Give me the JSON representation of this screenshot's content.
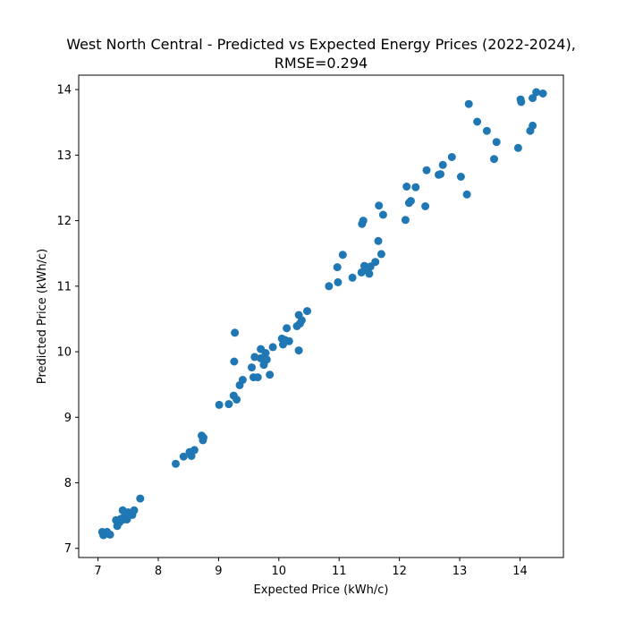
{
  "chart_data": {
    "type": "scatter",
    "title_line1": "West North Central - Predicted vs Expected Energy Prices (2022-2024),",
    "title_line2": "RMSE=0.294",
    "xlabel": "Expected Price (kWh/c)",
    "ylabel": "Predicted Price (kWh/c)",
    "xlim": [
      6.68,
      14.72
    ],
    "ylim": [
      6.86,
      14.22
    ],
    "xticks": [
      7,
      8,
      9,
      10,
      11,
      12,
      13,
      14
    ],
    "yticks": [
      7,
      8,
      9,
      10,
      11,
      12,
      13,
      14
    ],
    "grid": false,
    "marker_color": "#1f77b4",
    "points": [
      [
        7.07,
        7.25
      ],
      [
        7.09,
        7.2
      ],
      [
        7.12,
        7.22
      ],
      [
        7.15,
        7.25
      ],
      [
        7.2,
        7.21
      ],
      [
        7.3,
        7.43
      ],
      [
        7.32,
        7.34
      ],
      [
        7.36,
        7.4
      ],
      [
        7.38,
        7.45
      ],
      [
        7.41,
        7.58
      ],
      [
        7.43,
        7.44
      ],
      [
        7.45,
        7.5
      ],
      [
        7.48,
        7.44
      ],
      [
        7.5,
        7.55
      ],
      [
        7.55,
        7.53
      ],
      [
        7.57,
        7.51
      ],
      [
        7.6,
        7.58
      ],
      [
        7.7,
        7.76
      ],
      [
        8.29,
        8.29
      ],
      [
        8.42,
        8.4
      ],
      [
        8.52,
        8.47
      ],
      [
        8.55,
        8.41
      ],
      [
        8.6,
        8.5
      ],
      [
        8.72,
        8.72
      ],
      [
        8.74,
        8.65
      ],
      [
        8.75,
        8.69
      ],
      [
        9.01,
        9.19
      ],
      [
        9.17,
        9.2
      ],
      [
        9.25,
        9.33
      ],
      [
        9.3,
        9.27
      ],
      [
        9.35,
        9.49
      ],
      [
        9.4,
        9.57
      ],
      [
        9.26,
        9.85
      ],
      [
        9.27,
        10.29
      ],
      [
        9.55,
        9.76
      ],
      [
        9.58,
        9.61
      ],
      [
        9.6,
        9.92
      ],
      [
        9.65,
        9.61
      ],
      [
        9.7,
        10.04
      ],
      [
        9.7,
        9.9
      ],
      [
        9.75,
        9.8
      ],
      [
        9.78,
        9.98
      ],
      [
        9.8,
        9.88
      ],
      [
        9.85,
        9.65
      ],
      [
        9.9,
        10.07
      ],
      [
        10.05,
        10.2
      ],
      [
        10.07,
        10.11
      ],
      [
        10.1,
        10.18
      ],
      [
        10.13,
        10.36
      ],
      [
        10.17,
        10.16
      ],
      [
        10.3,
        10.39
      ],
      [
        10.33,
        10.56
      ],
      [
        10.35,
        10.43
      ],
      [
        10.38,
        10.48
      ],
      [
        10.33,
        10.02
      ],
      [
        10.47,
        10.62
      ],
      [
        10.83,
        11.0
      ],
      [
        10.98,
        11.06
      ],
      [
        10.97,
        11.29
      ],
      [
        11.06,
        11.48
      ],
      [
        11.22,
        11.13
      ],
      [
        11.37,
        11.21
      ],
      [
        11.38,
        11.95
      ],
      [
        11.4,
        12.0
      ],
      [
        11.42,
        11.31
      ],
      [
        11.45,
        11.25
      ],
      [
        11.5,
        11.19
      ],
      [
        11.52,
        11.3
      ],
      [
        11.6,
        11.37
      ],
      [
        11.65,
        11.69
      ],
      [
        11.66,
        12.23
      ],
      [
        11.7,
        11.49
      ],
      [
        11.73,
        12.09
      ],
      [
        12.1,
        12.01
      ],
      [
        12.12,
        12.52
      ],
      [
        12.16,
        12.27
      ],
      [
        12.19,
        12.3
      ],
      [
        12.27,
        12.51
      ],
      [
        12.43,
        12.22
      ],
      [
        12.45,
        12.77
      ],
      [
        12.65,
        12.7
      ],
      [
        12.68,
        12.71
      ],
      [
        12.72,
        12.85
      ],
      [
        12.87,
        12.97
      ],
      [
        13.02,
        12.67
      ],
      [
        13.12,
        12.4
      ],
      [
        13.15,
        13.78
      ],
      [
        13.29,
        13.51
      ],
      [
        13.45,
        13.37
      ],
      [
        13.57,
        12.94
      ],
      [
        13.61,
        13.2
      ],
      [
        13.97,
        13.11
      ],
      [
        14.01,
        13.85
      ],
      [
        14.02,
        13.81
      ],
      [
        14.17,
        13.37
      ],
      [
        14.21,
        13.45
      ],
      [
        14.21,
        13.87
      ],
      [
        14.27,
        13.96
      ],
      [
        14.38,
        13.94
      ]
    ]
  }
}
